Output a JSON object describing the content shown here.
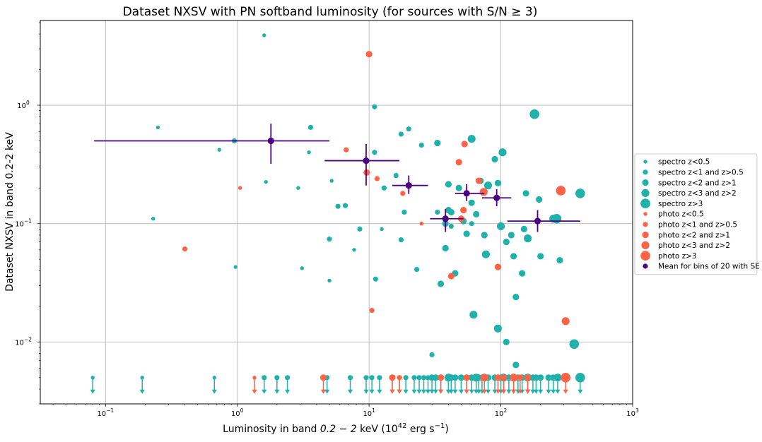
{
  "chart_data": {
    "type": "scatter",
    "title": "Dataset NXSV with PN softband luminosity (for sources with S/N ≥ 3)",
    "xlabel_parts": [
      "Luminosity in band ",
      "0.2 − 2",
      " keV (10",
      "42",
      " erg s",
      "−1",
      ")"
    ],
    "ylabel": "Dataset NXSV in band 0.2-2 keV",
    "xscale": "log",
    "yscale": "log",
    "xlim": [
      0.032,
      1000
    ],
    "ylim": [
      0.003,
      5.2
    ],
    "grid": true,
    "x_ticks": [
      {
        "value": 0.1,
        "base": "10",
        "exp": "−1"
      },
      {
        "value": 1,
        "base": "10",
        "exp": "0"
      },
      {
        "value": 10,
        "base": "10",
        "exp": "1"
      },
      {
        "value": 100,
        "base": "10",
        "exp": "2"
      },
      {
        "value": 1000,
        "base": "10",
        "exp": "3"
      }
    ],
    "y_ticks": [
      {
        "value": 0.01,
        "base": "10",
        "exp": "−2"
      },
      {
        "value": 0.1,
        "base": "10",
        "exp": "−1"
      },
      {
        "value": 1,
        "base": "10",
        "exp": "0"
      }
    ],
    "legend_position": "center-right",
    "colors": {
      "spectro": "#20b2aa",
      "photo": "#ff6347",
      "mean": "#4b0082"
    },
    "series": [
      {
        "name": "spectro z<0.5",
        "group": "spectro",
        "size": 1,
        "points": [
          [
            1.6,
            3.9
          ],
          [
            0.25,
            0.65
          ],
          [
            0.73,
            0.42
          ],
          [
            0.23,
            0.11
          ],
          [
            0.97,
            0.043
          ],
          [
            1.65,
            0.225
          ],
          [
            2.9,
            0.2
          ],
          [
            3.1,
            0.042
          ],
          [
            3.5,
            0.4
          ],
          [
            5.2,
            0.23
          ],
          [
            5.0,
            0.033
          ],
          [
            7.7,
            0.06
          ],
          [
            25,
            0.1
          ],
          [
            12.5,
            0.09
          ]
        ],
        "upper": [
          0.08,
          0.19,
          0.67
        ]
      },
      {
        "name": "spectro z<1 and z>0.5",
        "group": "spectro",
        "size": 2,
        "points": [
          [
            11,
            0.97
          ],
          [
            0.95,
            0.5
          ],
          [
            3.6,
            0.65
          ],
          [
            11,
            0.4
          ],
          [
            17.5,
            0.57
          ],
          [
            20,
            0.63
          ],
          [
            25,
            0.46
          ],
          [
            5.0,
            0.074
          ],
          [
            5.8,
            0.14
          ],
          [
            6.6,
            0.142
          ],
          [
            8.5,
            0.09
          ],
          [
            13,
            0.2
          ],
          [
            16,
            0.255
          ],
          [
            17.5,
            0.073
          ],
          [
            18.5,
            0.125
          ],
          [
            11.2,
            0.034
          ],
          [
            23,
            0.041
          ],
          [
            30,
            0.0078
          ],
          [
            33,
            0.125
          ],
          [
            42,
            0.095
          ],
          [
            60,
            0.1
          ]
        ],
        "upper": [
          1.6,
          2.0,
          2.4,
          4.8,
          7.2,
          9.5,
          10.5,
          12,
          15,
          17,
          19,
          22,
          24,
          26,
          28
        ]
      },
      {
        "name": "spectro z<2 and z>1",
        "group": "spectro",
        "size": 3,
        "points": [
          [
            33,
            0.48
          ],
          [
            38,
            0.1
          ],
          [
            40,
            0.13
          ],
          [
            40,
            0.215
          ],
          [
            48,
            0.2
          ],
          [
            52,
            0.105
          ],
          [
            60,
            0.15
          ],
          [
            65,
            0.12
          ],
          [
            70,
            0.23
          ],
          [
            75,
            0.08
          ],
          [
            42,
            0.125
          ],
          [
            55,
            0.082
          ],
          [
            38,
            0.062
          ],
          [
            35,
            0.031
          ],
          [
            45,
            0.038
          ],
          [
            90,
            0.35
          ],
          [
            95,
            0.22
          ],
          [
            110,
            0.07
          ],
          [
            120,
            0.08
          ],
          [
            125,
            0.053
          ],
          [
            130,
            0.024
          ],
          [
            145,
            0.038
          ],
          [
            150,
            0.09
          ],
          [
            155,
            0.18
          ],
          [
            195,
            0.16
          ],
          [
            200,
            0.053
          ],
          [
            280,
            0.049
          ],
          [
            110,
            0.01
          ],
          [
            130,
            0.0064
          ]
        ],
        "upper": [
          30,
          32,
          35,
          42,
          45,
          50,
          55,
          60,
          68,
          72,
          80,
          90,
          100,
          115,
          125,
          135,
          145,
          160,
          175,
          185,
          200,
          230,
          250
        ]
      },
      {
        "name": "spectro z<3 and z>2",
        "group": "spectro",
        "size": 4,
        "points": [
          [
            60,
            0.52
          ],
          [
            62,
            0.017
          ],
          [
            77,
            0.055
          ],
          [
            80,
            0.21
          ],
          [
            95,
            0.013
          ],
          [
            100,
            0.095
          ],
          [
            103,
            0.4
          ],
          [
            160,
            0.075
          ],
          [
            250,
            0.11
          ]
        ],
        "upper": [
          40,
          65,
          105,
          160,
          270
        ]
      },
      {
        "name": "spectro z>3",
        "group": "spectro",
        "size": 5,
        "points": [
          [
            180,
            0.84
          ],
          [
            360,
            0.0096
          ],
          [
            400,
            0.18
          ],
          [
            265,
            0.11
          ]
        ],
        "upper": [
          400
        ]
      },
      {
        "name": "photo z<0.5",
        "group": "photo",
        "size": 1,
        "points": [
          [
            1.05,
            0.2
          ],
          [
            25,
            0.1
          ]
        ],
        "upper": [
          1.35
        ]
      },
      {
        "name": "photo z<1 and z>0.5",
        "group": "photo",
        "size": 2,
        "points": [
          [
            0.4,
            0.061
          ],
          [
            6.7,
            0.42
          ],
          [
            11.5,
            0.24
          ],
          [
            10.5,
            0.0185
          ],
          [
            18,
            0.18
          ]
        ],
        "upper": [
          17
        ]
      },
      {
        "name": "photo z<2 and z>1",
        "group": "photo",
        "size": 3,
        "points": [
          [
            10,
            2.7
          ],
          [
            9.6,
            0.27
          ],
          [
            48,
            0.33
          ],
          [
            53,
            0.47
          ],
          [
            52,
            0.13
          ],
          [
            50,
            0.11
          ],
          [
            68,
            0.23
          ],
          [
            42,
            0.036
          ],
          [
            95,
            0.043
          ]
        ],
        "upper": [
          4.5,
          15,
          35,
          55,
          95,
          105,
          140,
          160
        ]
      },
      {
        "name": "photo z<3 and z>2",
        "group": "photo",
        "size": 4,
        "points": [
          [
            74,
            0.185
          ],
          [
            310,
            0.015
          ]
        ],
        "upper": [
          75,
          125
        ]
      },
      {
        "name": "photo z>3",
        "group": "photo",
        "size": 5,
        "points": [
          [
            285,
            0.19
          ]
        ],
        "upper": [
          310
        ]
      },
      {
        "name": "Mean for bins of 20 with SE",
        "group": "mean",
        "size": 2,
        "points": [
          {
            "x": 1.8,
            "y": 0.5,
            "xerr": [
              0.082,
              5.0
            ],
            "yerr": [
              0.32,
              0.7
            ]
          },
          {
            "x": 9.5,
            "y": 0.34,
            "xerr": [
              4.6,
              17
            ],
            "yerr": [
              0.21,
              0.47
            ]
          },
          {
            "x": 20,
            "y": 0.21,
            "xerr": [
              15,
              28
            ],
            "yerr": [
              0.178,
              0.255
            ]
          },
          {
            "x": 38,
            "y": 0.11,
            "xerr": [
              29,
              52
            ],
            "yerr": [
              0.085,
              0.133
            ]
          },
          {
            "x": 55,
            "y": 0.18,
            "xerr": [
              45,
              75
            ],
            "yerr": [
              0.155,
              0.215
            ]
          },
          {
            "x": 93,
            "y": 0.165,
            "xerr": [
              72,
              120
            ],
            "yerr": [
              0.14,
              0.195
            ]
          },
          {
            "x": 190,
            "y": 0.105,
            "xerr": [
              112,
              400
            ],
            "yerr": [
              0.085,
              0.13
            ]
          }
        ]
      }
    ],
    "upper_limit_y": 0.005,
    "upper_limit_arrow_y": 0.0037
  }
}
